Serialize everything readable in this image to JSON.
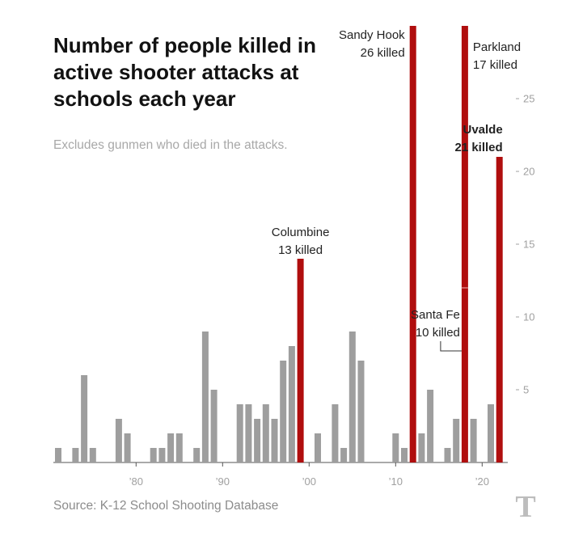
{
  "title": "Number of people killed in active shooter attacks at schools each year",
  "subtitle": "Excludes gunmen who died in the attacks.",
  "source": "Source: K-12 School Shooting Database",
  "colors": {
    "bar": "#9e9e9e",
    "highlight": "#b00e0e",
    "tick": "#a0a0a0",
    "axis": "#555555"
  },
  "logo_icon": "nyt-logo-icon",
  "chart_data": {
    "type": "bar",
    "title": "Number of people killed in active shooter attacks at schools each year",
    "xlabel": "",
    "ylabel": "",
    "ylim": [
      0,
      30
    ],
    "xlim": [
      1970.5,
      2022.5
    ],
    "x_ticks": [
      {
        "value": 1980,
        "label": "’80"
      },
      {
        "value": 1990,
        "label": "’90"
      },
      {
        "value": 2000,
        "label": "’00"
      },
      {
        "value": 2010,
        "label": "’10"
      },
      {
        "value": 2020,
        "label": "’20"
      }
    ],
    "y_ticks": [
      5,
      10,
      15,
      20,
      25
    ],
    "grid": false,
    "years": [
      1971,
      1973,
      1974,
      1975,
      1978,
      1979,
      1982,
      1983,
      1984,
      1985,
      1987,
      1988,
      1989,
      1992,
      1993,
      1994,
      1995,
      1996,
      1997,
      1998,
      1999,
      2001,
      2003,
      2004,
      2005,
      2006,
      2010,
      2011,
      2012,
      2013,
      2014,
      2016,
      2017,
      2018,
      2019,
      2021,
      2022
    ],
    "values": [
      1,
      1,
      6,
      1,
      3,
      2,
      1,
      1,
      2,
      2,
      1,
      9,
      5,
      4,
      4,
      3,
      4,
      3,
      7,
      8,
      14,
      2,
      4,
      1,
      9,
      7,
      2,
      1,
      30,
      2,
      5,
      1,
      3,
      30,
      3,
      4,
      21
    ],
    "highlighted_years": [
      1999,
      2012,
      2018,
      2022
    ],
    "annotations": [
      {
        "year": 1999,
        "name": "Columbine",
        "detail": "13 killed",
        "bold": false
      },
      {
        "year": 2012,
        "name": "Sandy Hook",
        "detail": "26 killed",
        "bold": false
      },
      {
        "year": 2018,
        "name": "Parkland",
        "detail": "17 killed",
        "bold": false
      },
      {
        "year": 2018,
        "name": "Santa Fe",
        "detail": "10 killed",
        "bold": false
      },
      {
        "year": 2022,
        "name": "Uvalde",
        "detail": "21 killed",
        "bold": true
      }
    ]
  }
}
